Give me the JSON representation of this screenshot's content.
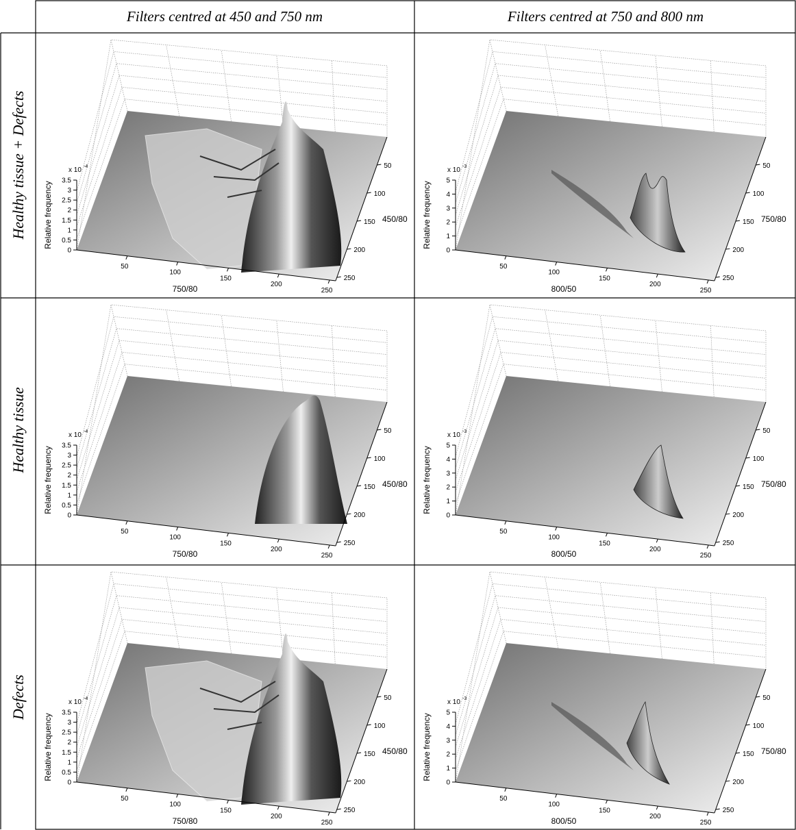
{
  "header": {
    "columns": [
      "Filters centred at 450 and 750 nm",
      "Filters centred at 750 and 800 nm"
    ]
  },
  "rows": [
    {
      "label": "Healthy tissue + Defects",
      "panels": [
        {
          "z_label": "Relative frequency",
          "z_multiplier": "x 10",
          "z_power": "-4",
          "z_ticks": [
            0,
            0.5,
            1,
            1.5,
            2,
            2.5,
            3,
            3.5
          ],
          "x_label": "750/80",
          "x_ticks": [
            50,
            100,
            150,
            200,
            250
          ],
          "y_label": "450/80",
          "y_ticks": [
            50,
            100,
            150,
            200,
            250
          ]
        },
        {
          "z_label": "Relative frequency",
          "z_multiplier": "x 10",
          "z_power": "-3",
          "z_ticks": [
            0,
            1,
            2,
            3,
            4,
            5
          ],
          "x_label": "800/50",
          "x_ticks": [
            50,
            100,
            150,
            200,
            250
          ],
          "y_label": "750/80",
          "y_ticks": [
            50,
            100,
            150,
            200,
            250
          ]
        }
      ]
    },
    {
      "label": "Healthy tissue",
      "panels": [
        {
          "z_label": "Relative frequency",
          "z_multiplier": "x 10",
          "z_power": "-4",
          "z_ticks": [
            0,
            0.5,
            1,
            1.5,
            2,
            2.5,
            3,
            3.5
          ],
          "x_label": "750/80",
          "x_ticks": [
            50,
            100,
            150,
            200,
            250
          ],
          "y_label": "450/80",
          "y_ticks": [
            50,
            100,
            150,
            200,
            250
          ]
        },
        {
          "z_label": "Relative frequency",
          "z_multiplier": "x 10",
          "z_power": "-3",
          "z_ticks": [
            0,
            1,
            2,
            3,
            4,
            5
          ],
          "x_label": "800/50",
          "x_ticks": [
            50,
            100,
            150,
            200,
            250
          ],
          "y_label": "750/80",
          "y_ticks": [
            50,
            100,
            150,
            200,
            250
          ]
        }
      ]
    },
    {
      "label": "Defects",
      "panels": [
        {
          "z_label": "Relative frequency",
          "z_multiplier": "x 10",
          "z_power": "-4",
          "z_ticks": [
            0,
            0.5,
            1,
            1.5,
            2,
            2.5,
            3,
            3.5
          ],
          "x_label": "750/80",
          "x_ticks": [
            50,
            100,
            150,
            200,
            250
          ],
          "y_label": "450/80",
          "y_ticks": [
            50,
            100,
            150,
            200,
            250
          ]
        },
        {
          "z_label": "Relative frequency",
          "z_multiplier": "x 10",
          "z_power": "-3",
          "z_ticks": [
            0,
            1,
            2,
            3,
            4,
            5
          ],
          "x_label": "800/50",
          "x_ticks": [
            50,
            100,
            150,
            200,
            250
          ],
          "y_label": "750/80",
          "y_ticks": [
            50,
            100,
            150,
            200,
            250
          ]
        }
      ]
    }
  ]
}
